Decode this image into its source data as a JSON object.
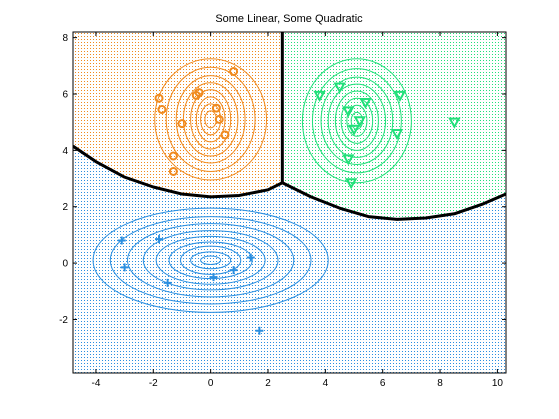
{
  "chart_data": {
    "type": "scatter",
    "title": "Some Linear, Some Quadratic",
    "xlabel": "",
    "ylabel": "",
    "xlim": [
      -4.8,
      10.3
    ],
    "ylim": [
      -3.9,
      8.2
    ],
    "x_ticks": [
      -4,
      -2,
      0,
      2,
      4,
      6,
      8,
      10
    ],
    "y_ticks": [
      -2,
      0,
      2,
      4,
      6,
      8
    ],
    "grid": false,
    "legend": "none",
    "regions": [
      {
        "class": "orange",
        "color": "#f08a1e",
        "fill": "#fbe6cf"
      },
      {
        "class": "green",
        "color": "#22e07a",
        "fill": "#d6f7e3"
      },
      {
        "class": "blue",
        "color": "#2b8fe0",
        "fill": "#d8e9f7"
      }
    ],
    "boundaries": [
      {
        "name": "orange-blue",
        "points": [
          [
            -4.8,
            4.15
          ],
          [
            -4.0,
            3.6
          ],
          [
            -3.0,
            3.05
          ],
          [
            -2.0,
            2.7
          ],
          [
            -1.0,
            2.45
          ],
          [
            0.0,
            2.35
          ],
          [
            1.0,
            2.4
          ],
          [
            2.0,
            2.6
          ],
          [
            2.5,
            2.85
          ]
        ]
      },
      {
        "name": "green-blue",
        "points": [
          [
            2.5,
            2.85
          ],
          [
            3.5,
            2.35
          ],
          [
            4.5,
            1.95
          ],
          [
            5.5,
            1.65
          ],
          [
            6.5,
            1.55
          ],
          [
            7.5,
            1.6
          ],
          [
            8.5,
            1.75
          ],
          [
            9.5,
            2.1
          ],
          [
            10.3,
            2.45
          ]
        ]
      },
      {
        "name": "orange-green",
        "points": [
          [
            2.5,
            8.2
          ],
          [
            2.5,
            2.85
          ]
        ]
      }
    ],
    "series": [
      {
        "class": "orange",
        "marker": "circle",
        "x": [
          -1.8,
          -1.7,
          -1.3,
          -1.3,
          -1.0,
          -0.5,
          -0.4,
          0.2,
          0.3,
          0.5,
          0.8
        ],
        "y": [
          5.85,
          5.45,
          3.8,
          3.25,
          4.95,
          5.95,
          6.05,
          5.5,
          5.1,
          4.55,
          6.8
        ]
      },
      {
        "class": "green",
        "marker": "triangle-down",
        "x": [
          3.8,
          4.5,
          4.8,
          4.8,
          4.9,
          5.0,
          5.2,
          5.4,
          6.5,
          6.6,
          8.5
        ],
        "y": [
          5.95,
          6.25,
          5.4,
          3.7,
          2.85,
          4.75,
          5.05,
          5.7,
          4.6,
          5.95,
          5.0
        ]
      },
      {
        "class": "blue",
        "marker": "plus",
        "x": [
          -3.1,
          -3.0,
          -1.8,
          -1.5,
          0.1,
          0.8,
          1.4,
          1.7
        ],
        "y": [
          0.8,
          -0.15,
          0.85,
          -0.7,
          -0.5,
          -0.25,
          0.2,
          -2.4
        ]
      }
    ],
    "contours": [
      {
        "class": "orange",
        "center": [
          0.0,
          5.1
        ],
        "rx": [
          0.2,
          0.35,
          0.5,
          0.7,
          0.95,
          1.2,
          1.55,
          1.95
        ],
        "ry": [
          0.3,
          0.55,
          0.8,
          1.05,
          1.3,
          1.55,
          1.85,
          2.15
        ]
      },
      {
        "class": "green",
        "center": [
          5.1,
          5.05
        ],
        "rx": [
          0.2,
          0.35,
          0.55,
          0.75,
          1.0,
          1.25,
          1.55,
          1.9
        ],
        "ry": [
          0.3,
          0.55,
          0.8,
          1.05,
          1.3,
          1.55,
          1.85,
          2.2
        ]
      },
      {
        "class": "blue",
        "center": [
          0.0,
          0.1
        ],
        "rx": [
          0.35,
          0.7,
          1.05,
          1.45,
          1.9,
          2.35,
          2.9,
          3.5,
          4.1
        ],
        "ry": [
          0.15,
          0.3,
          0.5,
          0.65,
          0.85,
          1.05,
          1.3,
          1.55,
          1.85
        ]
      }
    ]
  }
}
